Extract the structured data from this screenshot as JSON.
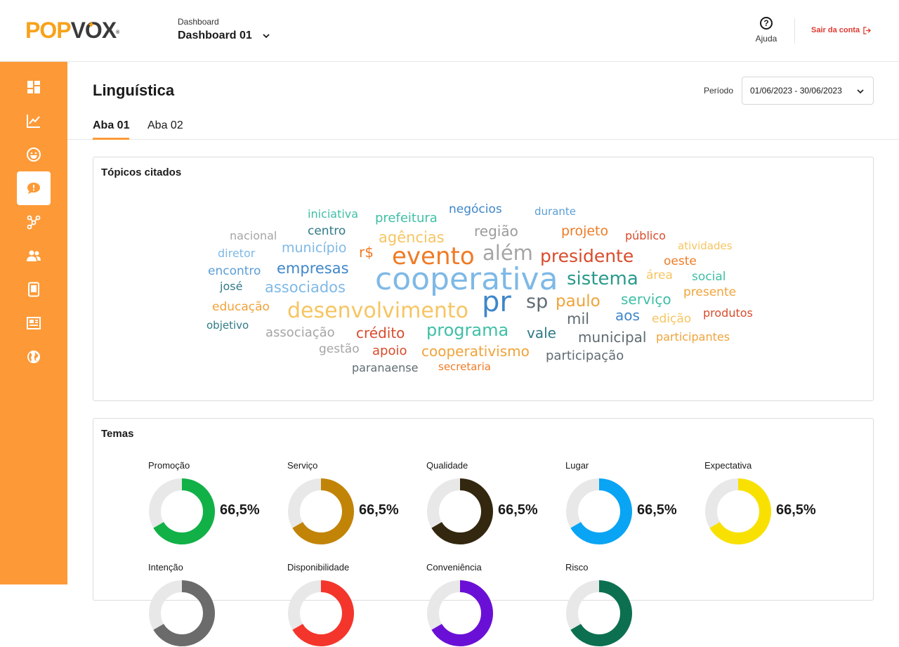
{
  "header": {
    "logo": {
      "pop": "POP",
      "vox": "VOX",
      "reg": "®"
    },
    "dashboard_label": "Dashboard",
    "dashboard_value": "Dashboard 01",
    "help_label": "Ajuda",
    "logout_label": "Sair da conta"
  },
  "sidebar": {
    "items": [
      {
        "icon": "dashboard-icon"
      },
      {
        "icon": "line-chart-icon"
      },
      {
        "icon": "smiley-icon"
      },
      {
        "icon": "speech-alert-icon",
        "active": true
      },
      {
        "icon": "network-icon"
      },
      {
        "icon": "users-icon"
      },
      {
        "icon": "tablet-icon"
      },
      {
        "icon": "news-icon"
      },
      {
        "icon": "globe-icon"
      }
    ]
  },
  "page": {
    "title": "Linguística",
    "period_label": "Período",
    "period_value": "01/06/2023 - 30/06/2023",
    "tabs": [
      {
        "label": "Aba 01",
        "active": true
      },
      {
        "label": "Aba 02"
      }
    ]
  },
  "topics": {
    "title": "Tópicos citados",
    "colors": {
      "orange": "#ef7b26",
      "blue": "#3f86c9",
      "lightblue": "#7fb9e6",
      "teal": "#2a9a8c",
      "red": "#d94b2b",
      "gray": "#9c9c9c",
      "yellow": "#f6c562",
      "darkteal": "#2f7a86",
      "slate": "#5f6b72"
    },
    "words": [
      {
        "text": "iniciativa",
        "color": "#3fbfa6"
      },
      {
        "text": "prefeitura",
        "color": "#3fbfa6"
      },
      {
        "text": "negócios",
        "color": "#3f86c9"
      },
      {
        "text": "durante",
        "color": "#5b9ed6"
      },
      {
        "text": "nacional",
        "color": "#a5a5a5"
      },
      {
        "text": "centro",
        "color": "#2f7a86"
      },
      {
        "text": "agências",
        "color": "#f6c562"
      },
      {
        "text": "região",
        "color": "#9c9c9c"
      },
      {
        "text": "projeto",
        "color": "#ef7b26"
      },
      {
        "text": "público",
        "color": "#d94b2b"
      },
      {
        "text": "diretor",
        "color": "#7fb9e6"
      },
      {
        "text": "município",
        "color": "#7fb9e6"
      },
      {
        "text": "r$",
        "color": "#ef7b26"
      },
      {
        "text": "evento",
        "color": "#ef7b26"
      },
      {
        "text": "além",
        "color": "#a5a5a5"
      },
      {
        "text": "presidente",
        "color": "#d94b2b"
      },
      {
        "text": "atividades",
        "color": "#f6c562"
      },
      {
        "text": "oeste",
        "color": "#ef7b26"
      },
      {
        "text": "encontro",
        "color": "#5b9ed6"
      },
      {
        "text": "empresas",
        "color": "#3f86c9"
      },
      {
        "text": "cooperativa",
        "color": "#7fb9e6"
      },
      {
        "text": "sistema",
        "color": "#2a9a8c"
      },
      {
        "text": "área",
        "color": "#f6c562"
      },
      {
        "text": "social",
        "color": "#3fbfa6"
      },
      {
        "text": "josé",
        "color": "#2f7a86"
      },
      {
        "text": "associados",
        "color": "#7fb9e6"
      },
      {
        "text": "presente",
        "color": "#f0a33a"
      },
      {
        "text": "educação",
        "color": "#f0a33a"
      },
      {
        "text": "desenvolvimento",
        "color": "#f6c562"
      },
      {
        "text": "pr",
        "color": "#3f86c9"
      },
      {
        "text": "sp",
        "color": "#5f6b72"
      },
      {
        "text": "paulo",
        "color": "#f0a33a"
      },
      {
        "text": "serviço",
        "color": "#3fbfa6"
      },
      {
        "text": "objetivo",
        "color": "#2f7a86"
      },
      {
        "text": "aos",
        "color": "#3f86c9"
      },
      {
        "text": "edição",
        "color": "#f6c562"
      },
      {
        "text": "produtos",
        "color": "#d94b2b"
      },
      {
        "text": "associação",
        "color": "#a5a5a5"
      },
      {
        "text": "crédito",
        "color": "#d94b2b"
      },
      {
        "text": "programa",
        "color": "#3fbfa6"
      },
      {
        "text": "vale",
        "color": "#2f7a86"
      },
      {
        "text": "mil",
        "color": "#5f6b72"
      },
      {
        "text": "municipal",
        "color": "#5f6b72"
      },
      {
        "text": "participantes",
        "color": "#f0a33a"
      },
      {
        "text": "gestão",
        "color": "#a5a5a5"
      },
      {
        "text": "apoio",
        "color": "#d94b2b"
      },
      {
        "text": "cooperativismo",
        "color": "#f0a33a"
      },
      {
        "text": "participação",
        "color": "#5f6b72"
      },
      {
        "text": "paranaense",
        "color": "#5f6b72"
      },
      {
        "text": "secretaria",
        "color": "#ef7b26"
      }
    ]
  },
  "themes": {
    "title": "Temas",
    "track_color": "#e8e8e8",
    "items": [
      {
        "label": "Promoção",
        "value": "66,5%",
        "pct": 0.665,
        "color": "#11b148"
      },
      {
        "label": "Serviço",
        "value": "66,5%",
        "pct": 0.665,
        "color": "#c28407"
      },
      {
        "label": "Qualidade",
        "value": "66,5%",
        "pct": 0.665,
        "color": "#33270f"
      },
      {
        "label": "Lugar",
        "value": "66,5%",
        "pct": 0.665,
        "color": "#09a4f4"
      },
      {
        "label": "Expectativa",
        "value": "66,5%",
        "pct": 0.665,
        "color": "#f8e100"
      },
      {
        "label": "Intenção",
        "value": "",
        "pct": 0.665,
        "color": "#6b6b6b"
      },
      {
        "label": "Disponibilidade",
        "value": "",
        "pct": 0.665,
        "color": "#f4352b"
      },
      {
        "label": "Conveniência",
        "value": "",
        "pct": 0.665,
        "color": "#6a10d6"
      },
      {
        "label": "Risco",
        "value": "",
        "pct": 0.665,
        "color": "#0c7050"
      }
    ]
  }
}
